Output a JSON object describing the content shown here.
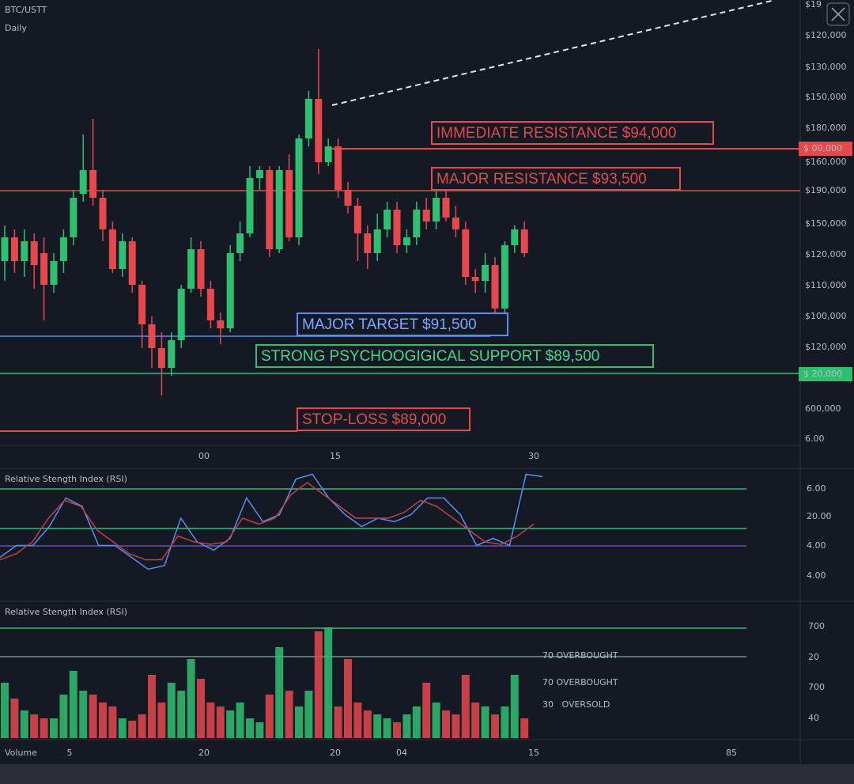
{
  "header": {
    "symbol": "BTC/USTT",
    "interval": "Daily"
  },
  "price_chart": {
    "type": "candlestick",
    "ylim": [
      88760,
      96600
    ],
    "candles": [
      [
        91980,
        92610,
        91630,
        92400
      ],
      [
        92400,
        92540,
        91770,
        91980
      ],
      [
        91980,
        92540,
        91700,
        92330
      ],
      [
        92330,
        92470,
        91490,
        91910
      ],
      [
        92120,
        92400,
        90930,
        91560
      ],
      [
        91560,
        92120,
        91420,
        91980
      ],
      [
        91980,
        92540,
        91770,
        92400
      ],
      [
        92400,
        93240,
        92260,
        93100
      ],
      [
        93170,
        94220,
        93030,
        93590
      ],
      [
        93590,
        94500,
        92960,
        93100
      ],
      [
        93100,
        93240,
        92330,
        92540
      ],
      [
        92540,
        92680,
        91770,
        91840
      ],
      [
        91840,
        92470,
        91700,
        92330
      ],
      [
        92330,
        92400,
        91420,
        91560
      ],
      [
        91560,
        91630,
        90440,
        90860
      ],
      [
        90860,
        91000,
        90090,
        90440
      ],
      [
        90440,
        90720,
        89600,
        90090
      ],
      [
        90090,
        90720,
        89950,
        90580
      ],
      [
        90580,
        91560,
        90440,
        91490
      ],
      [
        91490,
        92400,
        91420,
        92190
      ],
      [
        92190,
        92330,
        91350,
        91490
      ],
      [
        91490,
        91630,
        90790,
        90930
      ],
      [
        90930,
        91070,
        90510,
        90790
      ],
      [
        90790,
        92260,
        90720,
        92120
      ],
      [
        92120,
        92680,
        91980,
        92470
      ],
      [
        92470,
        93660,
        92400,
        93450
      ],
      [
        93450,
        93660,
        93240,
        93590
      ],
      [
        93590,
        93660,
        92050,
        92190
      ],
      [
        92190,
        93660,
        92120,
        93590
      ],
      [
        93590,
        93870,
        92330,
        92400
      ],
      [
        92400,
        94220,
        92260,
        94150
      ],
      [
        94150,
        94990,
        94010,
        94850
      ],
      [
        94850,
        95732,
        93520,
        93730
      ],
      [
        93730,
        94150,
        93660,
        94010
      ],
      [
        94010,
        94150,
        93100,
        93240
      ],
      [
        93240,
        93380,
        92820,
        92960
      ],
      [
        92960,
        93100,
        91980,
        92470
      ],
      [
        92470,
        92610,
        91840,
        92120
      ],
      [
        92120,
        92820,
        91980,
        92540
      ],
      [
        92540,
        93030,
        92400,
        92890
      ],
      [
        92890,
        93030,
        92120,
        92260
      ],
      [
        92260,
        92540,
        92120,
        92400
      ],
      [
        92400,
        93030,
        92260,
        92890
      ],
      [
        92890,
        93100,
        92540,
        92680
      ],
      [
        92680,
        93240,
        92540,
        93100
      ],
      [
        93100,
        93240,
        92680,
        92750
      ],
      [
        92750,
        92960,
        92400,
        92540
      ],
      [
        92540,
        92680,
        91560,
        91700
      ],
      [
        91700,
        91840,
        91420,
        91630
      ],
      [
        91630,
        92120,
        91420,
        91910
      ],
      [
        91910,
        92050,
        91070,
        91140
      ],
      [
        91140,
        92330,
        91070,
        92260
      ],
      [
        92260,
        92610,
        92120,
        92540
      ],
      [
        92540,
        92680,
        92050,
        92120
      ]
    ],
    "up_color": "#2fbf71",
    "down_color": "#e5484d",
    "right_axis": [
      "$19",
      "$120,000",
      "$130,000",
      "$150,000",
      "$180,000",
      "$160,000",
      "$190,000",
      "$150,000",
      "$120,000",
      "$110,000",
      "$100,000",
      "$120,000",
      "600,000",
      "6.00"
    ],
    "price_badges": [
      {
        "label": "$ 00,000",
        "color": "#e5484d"
      },
      {
        "label": "$ 20,000",
        "color": "#2fbf71"
      }
    ],
    "x_axis": [
      "00",
      "15",
      "30"
    ],
    "annotations": {
      "immediate_resistance": "IMMEDIATE RESISTANCE $94,000",
      "major_resistance": "MAJOR RESISTANCE $93,500",
      "major_target": "MAJOR TARGET $91,500",
      "support": "STRONG PSYCHOOGIGICAL SUPPORT $89,500",
      "stop_loss": "STOP-LOSS $89,000"
    }
  },
  "rsi_panel": {
    "title": "Relative Stength Index (RSI)",
    "ylim": [
      0,
      100
    ],
    "series": [
      {
        "color": "#5b8def",
        "values": [
          27,
          37,
          37,
          53,
          77,
          70,
          37,
          37,
          27,
          17,
          20,
          60,
          40,
          33,
          43,
          77,
          57,
          63,
          93,
          97,
          77,
          63,
          53,
          60,
          57,
          63,
          77,
          77,
          63,
          37,
          43,
          37,
          97,
          95
        ]
      },
      {
        "color": "#c0404a",
        "values": [
          25,
          30,
          40,
          60,
          75,
          70,
          50,
          40,
          30,
          25,
          25,
          45,
          40,
          38,
          40,
          60,
          55,
          60,
          80,
          90,
          80,
          70,
          60,
          60,
          60,
          65,
          75,
          70,
          60,
          50,
          40,
          38,
          45,
          55
        ]
      }
    ],
    "right_axis": [
      "6.00",
      "20.00",
      "4.00",
      "4.00"
    ]
  },
  "volume_panel": {
    "title": "Relative Stength Index (RSI)",
    "label": "Volume",
    "ylim": [
      0,
      160
    ],
    "values": [
      70,
      50,
      35,
      30,
      25,
      25,
      55,
      85,
      60,
      55,
      45,
      40,
      25,
      22,
      30,
      80,
      45,
      70,
      60,
      100,
      75,
      45,
      40,
      35,
      45,
      25,
      20,
      55,
      115,
      60,
      40,
      60,
      135,
      140,
      40,
      100,
      45,
      35,
      30,
      25,
      20,
      30,
      40,
      70,
      45,
      35,
      30,
      80,
      45,
      40,
      30,
      40,
      80,
      25
    ],
    "right_axis": [
      "700",
      "20",
      "700",
      "40"
    ],
    "x_axis": [
      "5",
      "20",
      "20",
      "04",
      "15",
      "85"
    ],
    "notes": [
      "70 OVERBOUGHT",
      "70 OVERBOUGHT",
      "30   OVERSOLD"
    ]
  }
}
